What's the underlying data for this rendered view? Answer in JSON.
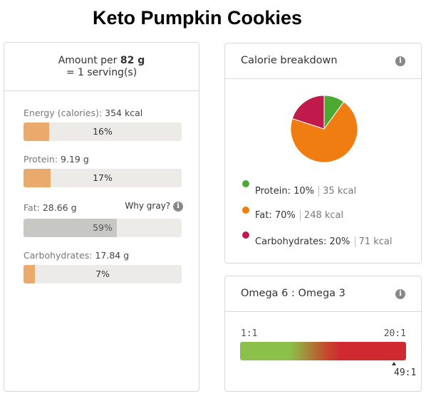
{
  "title": "Keto Pumpkin Cookies",
  "amount": {
    "prefix": "Amount per",
    "grams": "82 g",
    "serving": "= 1 serving(s)"
  },
  "nutrients": [
    {
      "label": "Energy (calories):",
      "value": "354 kcal",
      "percent_label": "16%",
      "fill_fraction": 0.16,
      "gray": false
    },
    {
      "label": "Protein:",
      "value": "9.19 g",
      "percent_label": "17%",
      "fill_fraction": 0.17,
      "gray": false
    },
    {
      "label": "Fat:",
      "value": "28.66 g",
      "percent_label": "59%",
      "fill_fraction": 0.59,
      "gray": true
    },
    {
      "label": "Carbohydrates:",
      "value": "17.84 g",
      "percent_label": "7%",
      "fill_fraction": 0.07,
      "gray": false
    }
  ],
  "why_gray": "Why gray?",
  "calorie_breakdown": {
    "title": "Calorie breakdown",
    "items": [
      {
        "name": "Protein:",
        "percent": "10%",
        "kcal": "35 kcal",
        "color": "#4caa32"
      },
      {
        "name": "Fat:",
        "percent": "70%",
        "kcal": "248 kcal",
        "color": "#f07d12"
      },
      {
        "name": "Carbohydrates:",
        "percent": "20%",
        "kcal": "71 kcal",
        "color": "#c01a4c"
      }
    ]
  },
  "chart_data": {
    "type": "pie",
    "categories": [
      "Protein",
      "Fat",
      "Carbohydrates"
    ],
    "values": [
      10,
      70,
      20
    ],
    "colors": [
      "#4caa32",
      "#f07d12",
      "#c01a4c"
    ]
  },
  "omega": {
    "title": "Omega 6 : Omega 3",
    "left_label": "1:1",
    "right_label": "20:1",
    "marker_label": "49:1"
  }
}
